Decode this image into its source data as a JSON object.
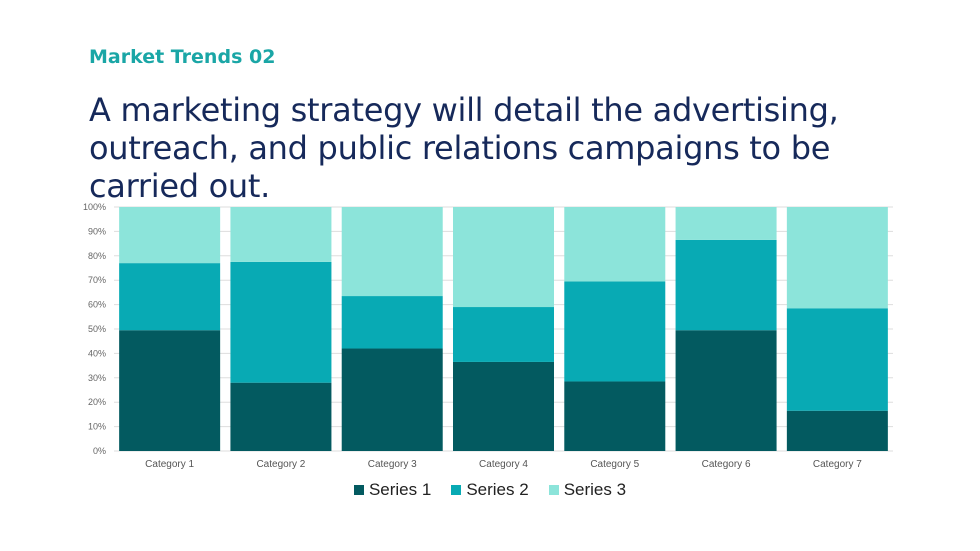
{
  "kicker": "Market Trends 02",
  "headline": "A marketing strategy will detail the advertising, outreach, and public relations campaigns to be carried out.",
  "colors": {
    "series1": "#035a60",
    "series2": "#08aab4",
    "series3": "#8ce4da",
    "grid": "#dddddd"
  },
  "chart_data": {
    "type": "bar",
    "stacked": "percent",
    "categories": [
      "Category 1",
      "Category 2",
      "Category 3",
      "Category 4",
      "Category 5",
      "Category 6",
      "Category 7"
    ],
    "y_ticks": [
      "0%",
      "10%",
      "20%",
      "30%",
      "40%",
      "50%",
      "60%",
      "70%",
      "80%",
      "90%",
      "100%"
    ],
    "ylim": [
      0,
      100
    ],
    "grid": true,
    "legend": "bottom",
    "series": [
      {
        "name": "Series 1",
        "values": [
          49.5,
          28,
          42,
          36.5,
          28.5,
          49.5,
          16.5
        ]
      },
      {
        "name": "Series 2",
        "values": [
          27.5,
          49.5,
          21.5,
          22.5,
          41,
          37,
          42
        ]
      },
      {
        "name": "Series 3",
        "values": [
          23,
          22.5,
          36.5,
          41,
          30.5,
          13.5,
          41.5
        ]
      }
    ]
  }
}
